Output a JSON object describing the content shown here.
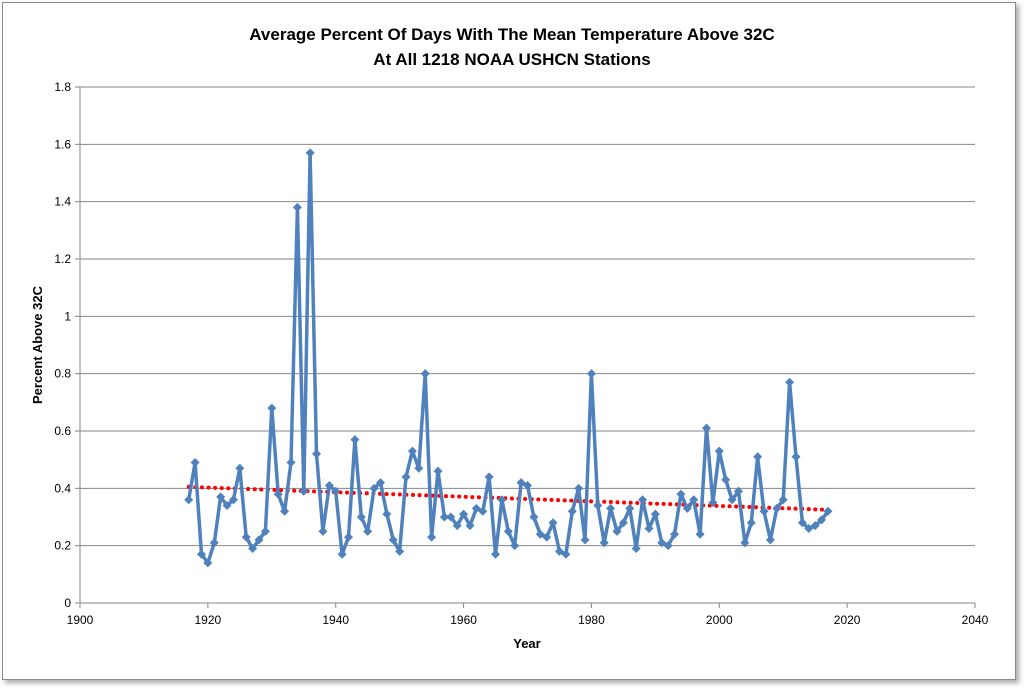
{
  "chart_data": {
    "type": "line",
    "title": "Average Percent Of Days With The Mean Temperature Above 32C",
    "subtitle": "At All 1218 NOAA USHCN Stations",
    "xlabel": "Year",
    "ylabel": "Percent Above 32C",
    "xlim": [
      1900,
      2040
    ],
    "ylim": [
      0,
      1.8
    ],
    "x_ticks": [
      "1900",
      "1920",
      "1940",
      "1960",
      "1980",
      "2000",
      "2020",
      "2040"
    ],
    "y_ticks": [
      "0",
      "0.2",
      "0.4",
      "0.6",
      "0.8",
      "1",
      "1.2",
      "1.4",
      "1.6",
      "1.8"
    ],
    "grid": "horizontal",
    "legend": "none",
    "colors": {
      "series": "#4f81bd",
      "trend": "#ff0000",
      "grid": "#868686"
    },
    "series": [
      {
        "style": "line-with-diamond-markers",
        "x": [
          1917,
          1918,
          1919,
          1920,
          1921,
          1922,
          1923,
          1924,
          1925,
          1926,
          1927,
          1928,
          1929,
          1930,
          1931,
          1932,
          1933,
          1934,
          1935,
          1936,
          1937,
          1938,
          1939,
          1940,
          1941,
          1942,
          1943,
          1944,
          1945,
          1946,
          1947,
          1948,
          1949,
          1950,
          1951,
          1952,
          1953,
          1954,
          1955,
          1956,
          1957,
          1958,
          1959,
          1960,
          1961,
          1962,
          1963,
          1964,
          1965,
          1966,
          1967,
          1968,
          1969,
          1970,
          1971,
          1972,
          1973,
          1974,
          1975,
          1976,
          1977,
          1978,
          1979,
          1980,
          1981,
          1982,
          1983,
          1984,
          1985,
          1986,
          1987,
          1988,
          1989,
          1990,
          1991,
          1992,
          1993,
          1994,
          1995,
          1996,
          1997,
          1998,
          1999,
          2000,
          2001,
          2002,
          2003,
          2004,
          2005,
          2006,
          2007,
          2008,
          2009,
          2010,
          2011,
          2012,
          2013,
          2014,
          2015,
          2016,
          2017
        ],
        "y": [
          0.36,
          0.49,
          0.17,
          0.14,
          0.21,
          0.37,
          0.34,
          0.36,
          0.47,
          0.23,
          0.19,
          0.22,
          0.25,
          0.68,
          0.38,
          0.32,
          0.49,
          1.38,
          0.39,
          1.57,
          0.52,
          0.25,
          0.41,
          0.39,
          0.17,
          0.23,
          0.57,
          0.3,
          0.25,
          0.4,
          0.42,
          0.31,
          0.22,
          0.18,
          0.44,
          0.53,
          0.47,
          0.8,
          0.23,
          0.46,
          0.3,
          0.3,
          0.27,
          0.31,
          0.27,
          0.33,
          0.32,
          0.44,
          0.17,
          0.36,
          0.25,
          0.2,
          0.42,
          0.41,
          0.3,
          0.24,
          0.23,
          0.28,
          0.18,
          0.17,
          0.32,
          0.4,
          0.22,
          0.8,
          0.34,
          0.21,
          0.33,
          0.25,
          0.28,
          0.33,
          0.19,
          0.36,
          0.26,
          0.31,
          0.21,
          0.2,
          0.24,
          0.38,
          0.33,
          0.36,
          0.24,
          0.61,
          0.35,
          0.53,
          0.43,
          0.36,
          0.39,
          0.21,
          0.28,
          0.51,
          0.32,
          0.22,
          0.33,
          0.36,
          0.77,
          0.51,
          0.28,
          0.26,
          0.27,
          0.29,
          0.32
        ]
      },
      {
        "style": "dotted-linear-trendline",
        "x": [
          1917,
          2017
        ],
        "y": [
          0.405,
          0.325
        ]
      }
    ]
  }
}
